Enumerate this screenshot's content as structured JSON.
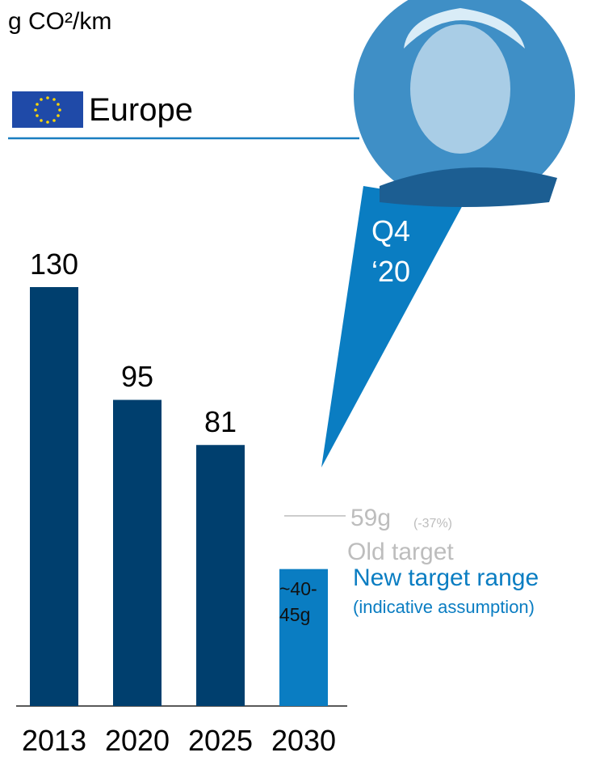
{
  "chart_data": {
    "type": "bar",
    "unit": "g CO²/km",
    "region": "Europe",
    "categories": [
      "2013",
      "2020",
      "2025",
      "2030"
    ],
    "values": [
      130,
      95,
      81,
      42.5
    ],
    "value_labels": [
      "130",
      "95",
      "81",
      "~40-45g"
    ],
    "colors": [
      "#003f6e",
      "#003f6e",
      "#003f6e",
      "#0a7dc2"
    ],
    "ylim": [
      0,
      130
    ],
    "reference_line": {
      "value": 59,
      "label": "59g",
      "change": "(-37%)",
      "note": "Old target",
      "color": "#bdbdbd"
    },
    "annotations": [
      "New target range",
      "(indicative assumption)"
    ],
    "quote": [
      "Q4",
      "‘20"
    ]
  }
}
